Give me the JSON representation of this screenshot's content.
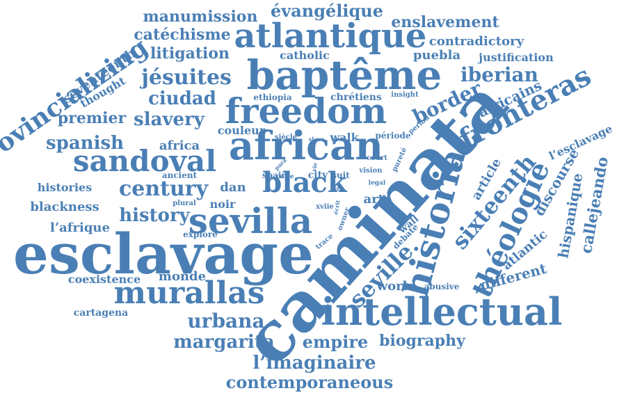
{
  "theme": {
    "word_color": "#4a7fb5",
    "background": "#ffffff"
  },
  "words": [
    {
      "id": "caminata",
      "text": "caminata"
    },
    {
      "id": "esclavage",
      "text": "esclavage"
    },
    {
      "id": "bapteme",
      "text": "baptême"
    },
    {
      "id": "freedom",
      "text": "freedom"
    },
    {
      "id": "african",
      "text": "african"
    },
    {
      "id": "atlantique",
      "text": "atlantique"
    },
    {
      "id": "intellectual",
      "text": "intellectual"
    },
    {
      "id": "sevilla",
      "text": "sevilla"
    },
    {
      "id": "murallas",
      "text": "murallas"
    },
    {
      "id": "sandoval",
      "text": "sandoval"
    },
    {
      "id": "black",
      "text": "black"
    },
    {
      "id": "historia",
      "text": "historia"
    },
    {
      "id": "fronteras",
      "text": "fronteras"
    },
    {
      "id": "provincializing",
      "text": "provincializing"
    },
    {
      "id": "century",
      "text": "century"
    },
    {
      "id": "theologie",
      "text": "théologie"
    },
    {
      "id": "sixteenth",
      "text": "sixteenth"
    },
    {
      "id": "seville",
      "text": "seville."
    },
    {
      "id": "history",
      "text": "history"
    },
    {
      "id": "jesuites",
      "text": "jésuites"
    },
    {
      "id": "urbana",
      "text": "urbana"
    },
    {
      "id": "margarita",
      "text": "margarita"
    },
    {
      "id": "limaginaire",
      "text": "l’imaginaire"
    },
    {
      "id": "contemporaneous",
      "text": "contemporaneous"
    },
    {
      "id": "empire",
      "text": "empire"
    },
    {
      "id": "biography",
      "text": "biography"
    },
    {
      "id": "iberian",
      "text": "iberian"
    },
    {
      "id": "border",
      "text": "border"
    },
    {
      "id": "slavery",
      "text": "slavery"
    },
    {
      "id": "spanish",
      "text": "spanish"
    },
    {
      "id": "ciudad",
      "text": "ciudad"
    },
    {
      "id": "evangelique",
      "text": "évangélique"
    },
    {
      "id": "manumission",
      "text": "manumission"
    },
    {
      "id": "catechisme",
      "text": "catéchisme"
    },
    {
      "id": "litigation",
      "text": "litigation"
    },
    {
      "id": "enslavement",
      "text": "enslavement"
    },
    {
      "id": "contradictory",
      "text": "contradictory"
    },
    {
      "id": "puebla",
      "text": "puebla"
    },
    {
      "id": "justification",
      "text": "justification"
    },
    {
      "id": "catholic",
      "text": "catholic"
    },
    {
      "id": "africains",
      "text": "africains"
    },
    {
      "id": "seventeenth",
      "text": "seventeenth"
    },
    {
      "id": "thought",
      "text": "thought"
    },
    {
      "id": "premier",
      "text": "premier"
    },
    {
      "id": "africa",
      "text": "africa"
    },
    {
      "id": "couleur",
      "text": "couleur"
    },
    {
      "id": "walk",
      "text": "walk"
    },
    {
      "id": "periode",
      "text": "période"
    },
    {
      "id": "histories",
      "text": "histories"
    },
    {
      "id": "dan",
      "text": "dan"
    },
    {
      "id": "noir",
      "text": "noir"
    },
    {
      "id": "blackness",
      "text": "blackness"
    },
    {
      "id": "lafrique",
      "text": "l’afrique"
    },
    {
      "id": "coexistence",
      "text": "coexistence"
    },
    {
      "id": "monde",
      "text": "monde"
    },
    {
      "id": "cartagena",
      "text": "cartagena"
    },
    {
      "id": "world",
      "text": "world"
    },
    {
      "id": "abusive",
      "text": "abusive"
    },
    {
      "id": "different",
      "text": "different"
    },
    {
      "id": "atlantic",
      "text": "atlantic"
    },
    {
      "id": "hispanique",
      "text": "hispanique"
    },
    {
      "id": "callejeando",
      "text": "callejeando"
    },
    {
      "id": "discourse",
      "text": "discourse"
    },
    {
      "id": "lesclavage",
      "text": "l’esclavage"
    },
    {
      "id": "article",
      "text": "article"
    },
    {
      "id": "arte",
      "text": "arte"
    },
    {
      "id": "city",
      "text": "city"
    },
    {
      "id": "suit",
      "text": "suit"
    },
    {
      "id": "spain",
      "text": "spain"
    },
    {
      "id": "ethiopia",
      "text": "ethiopia"
    },
    {
      "id": "chretiens",
      "text": "chrétiens"
    },
    {
      "id": "insight",
      "text": "insight"
    },
    {
      "id": "siecle",
      "text": "siècle"
    },
    {
      "id": "slave",
      "text": "slave"
    },
    {
      "id": "ancient",
      "text": "ancient"
    },
    {
      "id": "plural",
      "text": "plural"
    },
    {
      "id": "explore",
      "text": "explore"
    },
    {
      "id": "cette",
      "text": "cette"
    },
    {
      "id": "vision",
      "text": "vision"
    },
    {
      "id": "legal",
      "text": "legal"
    },
    {
      "id": "site",
      "text": "site"
    },
    {
      "id": "xviie",
      "text": "xviie"
    },
    {
      "id": "ecrit",
      "text": "écrit"
    },
    {
      "id": "owner",
      "text": "owner"
    },
    {
      "id": "trace",
      "text": "trace"
    },
    {
      "id": "court",
      "text": "court"
    },
    {
      "id": "wall",
      "text": "wall"
    },
    {
      "id": "debate",
      "text": "debate"
    },
    {
      "id": "purete",
      "text": "pureté"
    },
    {
      "id": "period",
      "text": "period"
    },
    {
      "id": "para",
      "text": "para"
    },
    {
      "id": "vie",
      "text": "vie"
    }
  ]
}
